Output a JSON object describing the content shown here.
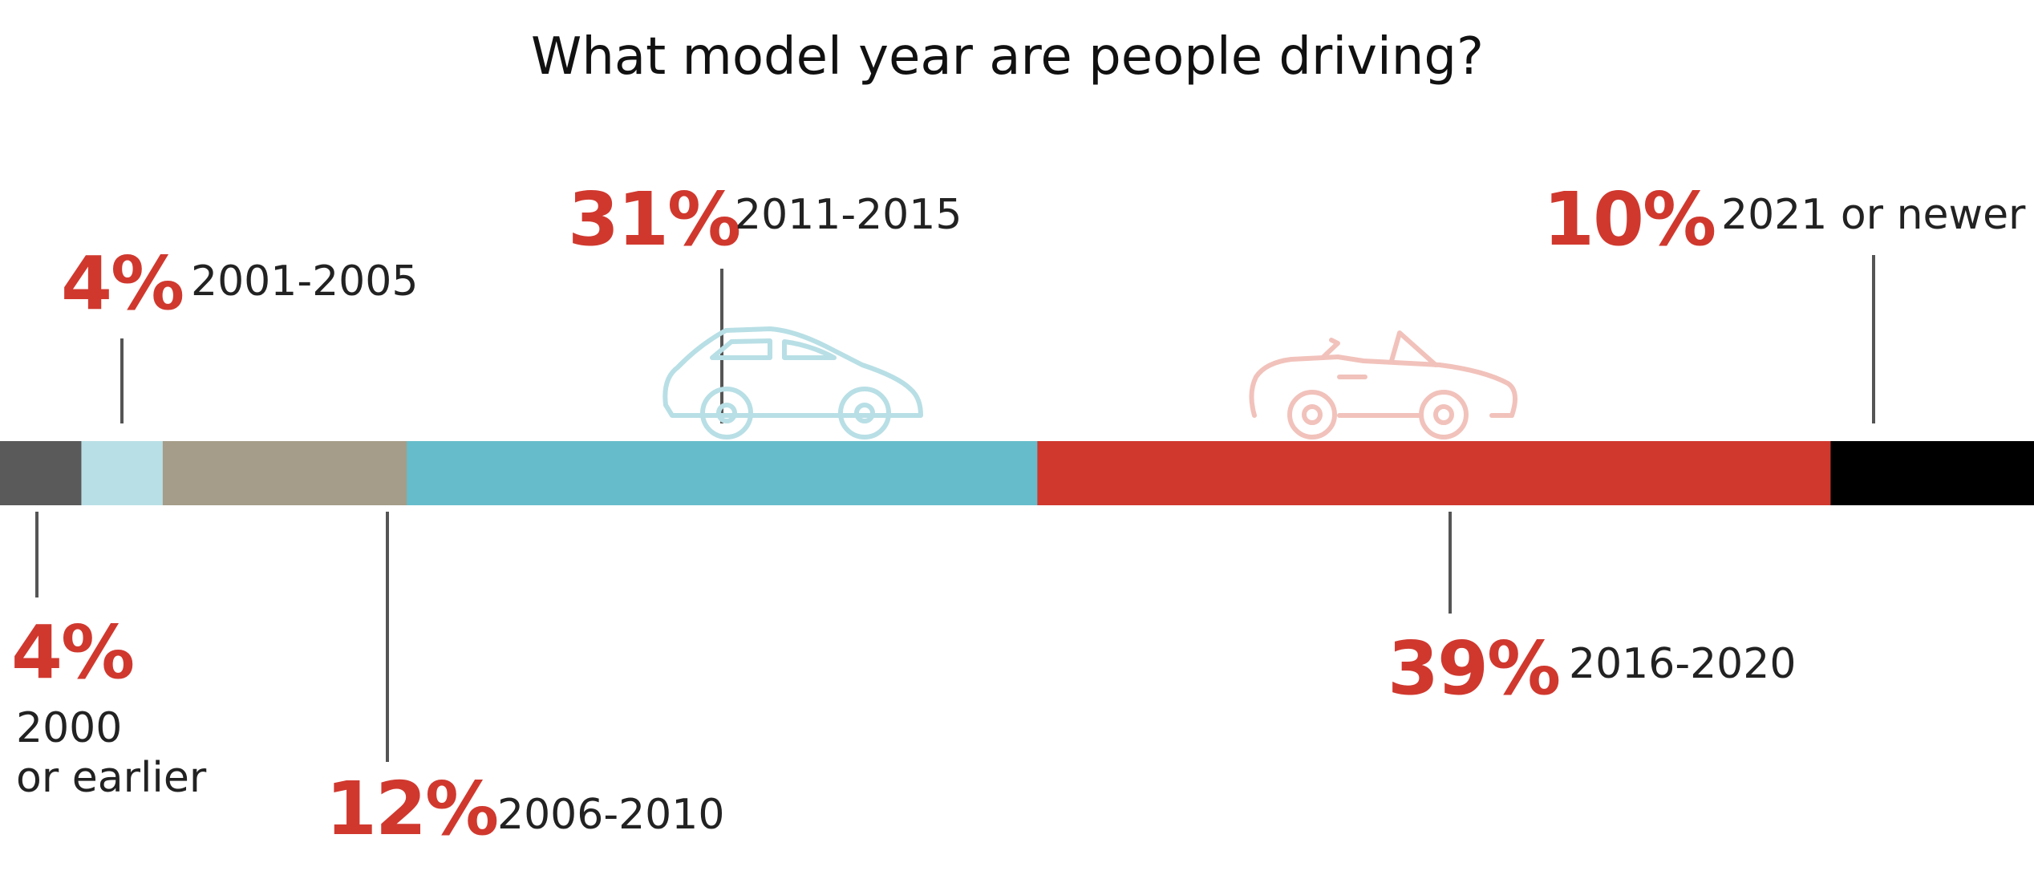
{
  "chart_data": {
    "type": "bar",
    "title": "What model year are people driving?",
    "orientation": "horizontal-stacked",
    "unit": "%",
    "segments": [
      {
        "category": "2000 or earlier",
        "category_lines": [
          "2000",
          "or earlier"
        ],
        "value": 4,
        "label": "4%",
        "color": "#5a5a5a",
        "label_side": "below"
      },
      {
        "category": "2001-2005",
        "category_lines": [
          "2001-2005"
        ],
        "value": 4,
        "label": "4%",
        "color": "#b8dfe5",
        "label_side": "above"
      },
      {
        "category": "2006-2010",
        "category_lines": [
          "2006-2010"
        ],
        "value": 12,
        "label": "12%",
        "color": "#a59d89",
        "label_side": "below"
      },
      {
        "category": "2011-2015",
        "category_lines": [
          "2011-2015"
        ],
        "value": 31,
        "label": "31%",
        "color": "#66bcca",
        "label_side": "above"
      },
      {
        "category": "2016-2020",
        "category_lines": [
          "2016-2020"
        ],
        "value": 39,
        "label": "39%",
        "color": "#d0382e",
        "label_side": "below"
      },
      {
        "category": "2021 or newer",
        "category_lines": [
          "2021 or newer"
        ],
        "value": 10,
        "label": "10%",
        "color": "#000000",
        "label_side": "above"
      }
    ],
    "icons": [
      {
        "name": "sedan-icon",
        "segment": "2011-2015",
        "color": "#b8dfe5"
      },
      {
        "name": "convertible-icon",
        "segment": "2016-2020",
        "color": "#f1c2bb"
      }
    ]
  }
}
